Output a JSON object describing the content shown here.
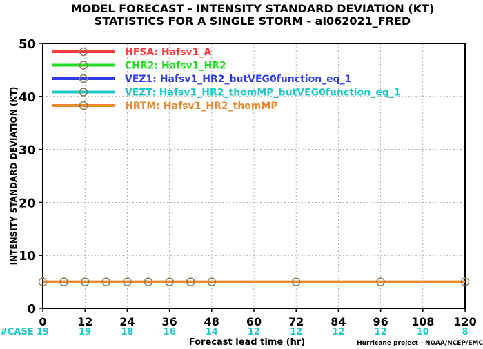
{
  "chart_data": {
    "type": "line",
    "title_lines": [
      "MODEL FORECAST - INTENSITY STANDARD DEVIATION (KT)",
      "STATISTICS FOR A SINGLE STORM - al062021_FRED"
    ],
    "xlabel": "Forecast lead time (hr)",
    "ylabel": "INTENSITY STANDARD DEVIATION (KT)",
    "xlim": [
      0,
      120
    ],
    "ylim": [
      0,
      50
    ],
    "xticks": [
      0,
      12,
      24,
      36,
      48,
      60,
      72,
      84,
      96,
      108,
      120
    ],
    "yticks": [
      0,
      10,
      20,
      30,
      40,
      50
    ],
    "grid": true,
    "legend_position": "top-left",
    "case_label": "#CASE",
    "case_counts": [
      "19",
      "19",
      "18",
      "16",
      "14",
      "12",
      "12",
      "12",
      "12",
      "10",
      "8"
    ],
    "credit": "Hurricane project - NOAA/NCEP/EMC",
    "series": [
      {
        "name": "HFSA: Hafsv1_A",
        "color": "#ff3b3b",
        "x": [],
        "y": []
      },
      {
        "name": "CHR2: Hafsv1_HR2",
        "color": "#22dd22",
        "x": [],
        "y": []
      },
      {
        "name": "VEZ1: Hafsv1_HR2_butVEG0function_eq_1",
        "color": "#2f3be6",
        "x": [],
        "y": []
      },
      {
        "name": "VEZT: Hafsv1_HR2_thomMP_butVEG0function_eq_1",
        "color": "#22c8c8",
        "x": [],
        "y": []
      },
      {
        "name": "HRTM: Hafsv1_HR2_thomMP",
        "color": "#e8892e",
        "x": [
          0,
          6,
          12,
          18,
          24,
          30,
          36,
          42,
          48,
          72,
          96,
          120
        ],
        "y": [
          5,
          5,
          5,
          5,
          5,
          5,
          5,
          5,
          5,
          5,
          5,
          5
        ]
      }
    ]
  }
}
